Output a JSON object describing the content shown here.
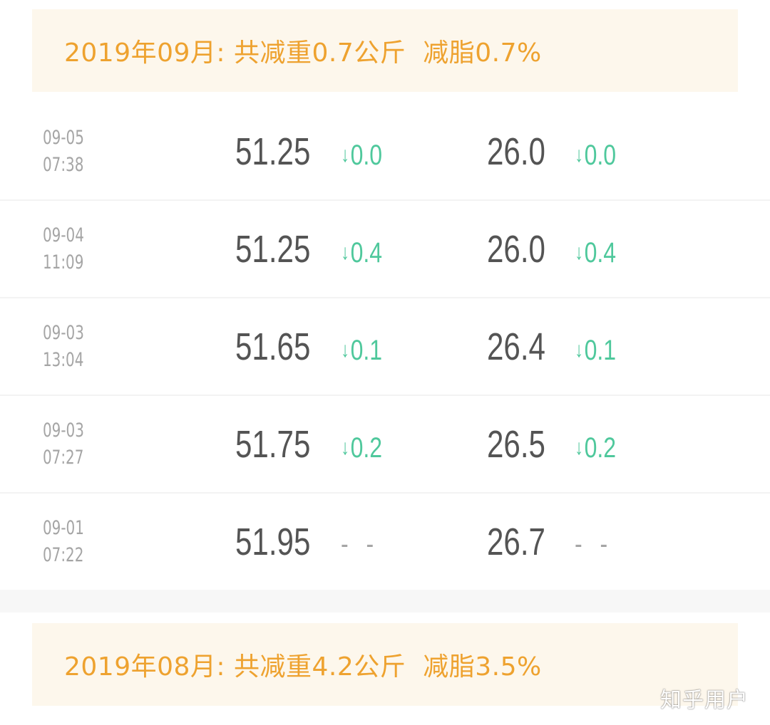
{
  "months": [
    {
      "period": "2019年09月: 共减重0.7公斤",
      "fat_change": "减脂0.7%"
    },
    {
      "period": "2019年08月: 共减重4.2公斤",
      "fat_change": "减脂3.5%"
    }
  ],
  "records": [
    {
      "date": "09-05",
      "time": "07:38",
      "weight": "51.25",
      "weight_delta": "0.0",
      "fat": "26.0",
      "fat_delta": "0.0"
    },
    {
      "date": "09-04",
      "time": "11:09",
      "weight": "51.25",
      "weight_delta": "0.4",
      "fat": "26.0",
      "fat_delta": "0.4"
    },
    {
      "date": "09-03",
      "time": "13:04",
      "weight": "51.65",
      "weight_delta": "0.1",
      "fat": "26.4",
      "fat_delta": "0.1"
    },
    {
      "date": "09-03",
      "time": "07:27",
      "weight": "51.75",
      "weight_delta": "0.2",
      "fat": "26.5",
      "fat_delta": "0.2"
    },
    {
      "date": "09-01",
      "time": "07:22",
      "weight": "51.95",
      "weight_delta": "- -",
      "fat": "26.7",
      "fat_delta": "- -"
    }
  ],
  "delta_arrow": "↓",
  "watermark": "知乎用户",
  "colors": {
    "header_bg": "#fdf7ec",
    "header_text": "#eea22f",
    "delta_down": "#4fc89c",
    "value": "#545454",
    "muted": "#a5a5a5"
  }
}
